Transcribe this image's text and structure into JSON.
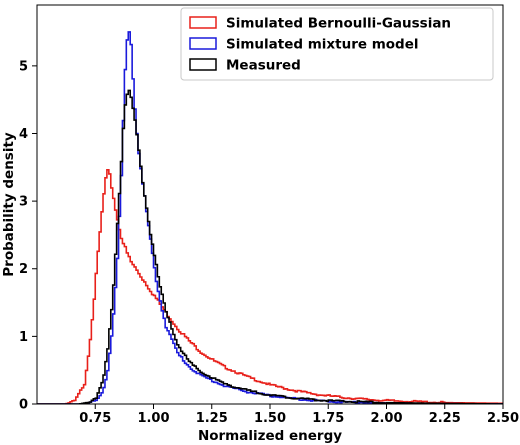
{
  "chart_data": {
    "type": "line",
    "title": "",
    "xlabel": "Normalized energy",
    "ylabel": "Probability density",
    "xlim": [
      0.5,
      2.5
    ],
    "ylim": [
      0,
      5.9
    ],
    "x_ticks": [
      "0.75",
      "1.00",
      "1.25",
      "1.50",
      "1.75",
      "2.00",
      "2.25",
      "2.50"
    ],
    "y_ticks": [
      "0",
      "1",
      "2",
      "3",
      "4",
      "5"
    ],
    "grid": false,
    "legend_position": "top-right",
    "series": [
      {
        "name": "Simulated Bernoulli-Gaussian",
        "color": "#e8201a",
        "x": [
          0.62,
          0.66,
          0.7,
          0.72,
          0.74,
          0.76,
          0.78,
          0.79,
          0.8,
          0.81,
          0.82,
          0.84,
          0.86,
          0.88,
          0.9,
          0.93,
          0.96,
          1.0,
          1.05,
          1.1,
          1.15,
          1.2,
          1.25,
          1.3,
          1.4,
          1.5,
          1.6,
          1.7,
          1.8,
          1.9,
          2.0,
          2.25,
          2.5
        ],
        "y": [
          0.0,
          0.05,
          0.3,
          0.8,
          1.5,
          2.3,
          3.0,
          3.3,
          3.42,
          3.35,
          3.15,
          2.75,
          2.45,
          2.25,
          2.1,
          1.95,
          1.8,
          1.6,
          1.35,
          1.12,
          0.93,
          0.77,
          0.65,
          0.55,
          0.4,
          0.28,
          0.2,
          0.14,
          0.1,
          0.07,
          0.05,
          0.02,
          0.01
        ]
      },
      {
        "name": "Simulated mixture model",
        "color": "#1a1adb",
        "x": [
          0.7,
          0.75,
          0.78,
          0.8,
          0.82,
          0.84,
          0.86,
          0.87,
          0.88,
          0.89,
          0.9,
          0.91,
          0.92,
          0.94,
          0.96,
          0.98,
          1.0,
          1.02,
          1.05,
          1.1,
          1.15,
          1.2,
          1.3,
          1.4,
          1.5,
          1.6,
          1.7,
          1.8,
          2.0,
          2.25,
          2.5
        ],
        "y": [
          0.0,
          0.05,
          0.2,
          0.5,
          1.1,
          2.0,
          3.5,
          4.5,
          5.3,
          5.6,
          5.35,
          4.7,
          4.2,
          3.5,
          3.0,
          2.5,
          2.0,
          1.6,
          1.15,
          0.75,
          0.55,
          0.42,
          0.27,
          0.18,
          0.12,
          0.08,
          0.05,
          0.03,
          0.015,
          0.005,
          0.0
        ]
      },
      {
        "name": "Measured",
        "color": "#000000",
        "x": [
          0.68,
          0.72,
          0.75,
          0.78,
          0.8,
          0.82,
          0.84,
          0.86,
          0.87,
          0.88,
          0.89,
          0.9,
          0.92,
          0.94,
          0.96,
          0.98,
          1.0,
          1.02,
          1.05,
          1.1,
          1.15,
          1.2,
          1.3,
          1.4,
          1.5,
          1.6,
          1.7,
          1.8,
          2.0,
          2.25,
          2.5
        ],
        "y": [
          0.0,
          0.03,
          0.1,
          0.35,
          0.8,
          1.5,
          2.6,
          3.7,
          4.3,
          4.55,
          4.6,
          4.5,
          4.1,
          3.55,
          3.05,
          2.6,
          2.2,
          1.8,
          1.35,
          0.88,
          0.62,
          0.47,
          0.3,
          0.2,
          0.13,
          0.09,
          0.06,
          0.04,
          0.02,
          0.008,
          0.0
        ]
      }
    ]
  }
}
